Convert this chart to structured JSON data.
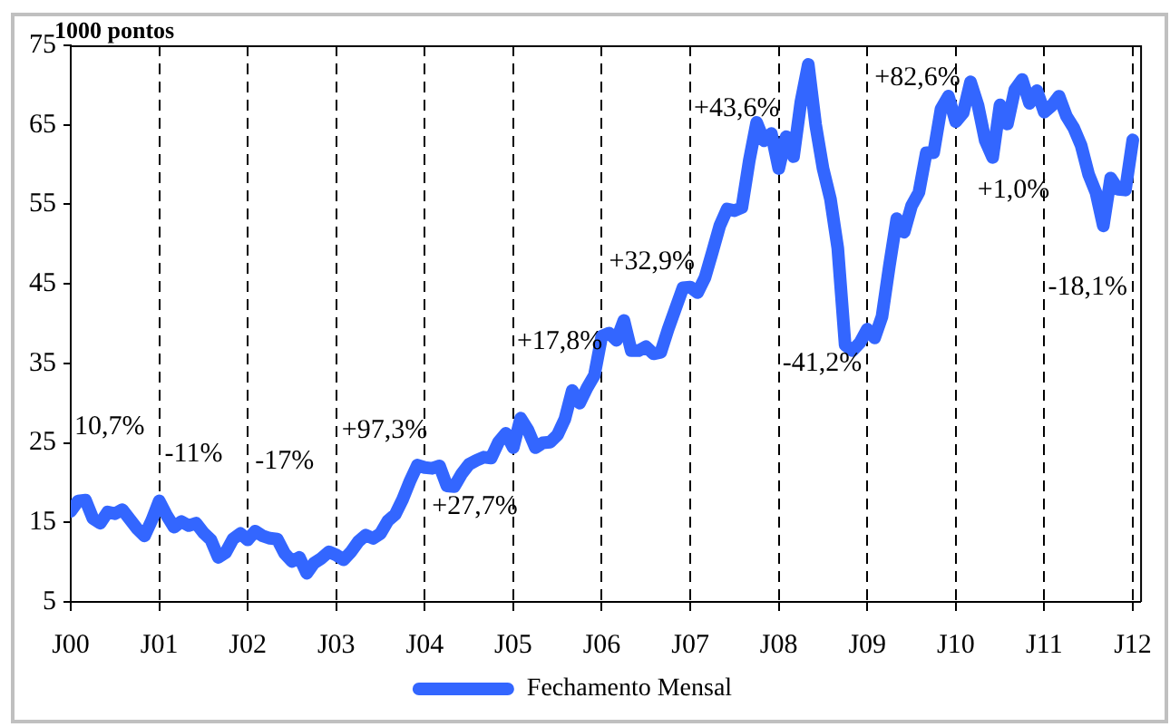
{
  "chart_data": {
    "type": "line",
    "ylabel": "1000 pontos",
    "x": [
      "2000-01",
      "2000-02",
      "2000-03",
      "2000-04",
      "2000-05",
      "2000-06",
      "2000-07",
      "2000-08",
      "2000-09",
      "2000-10",
      "2000-11",
      "2000-12",
      "2001-01",
      "2001-02",
      "2001-03",
      "2001-04",
      "2001-05",
      "2001-06",
      "2001-07",
      "2001-08",
      "2001-09",
      "2001-10",
      "2001-11",
      "2001-12",
      "2002-01",
      "2002-02",
      "2002-03",
      "2002-04",
      "2002-05",
      "2002-06",
      "2002-07",
      "2002-08",
      "2002-09",
      "2002-10",
      "2002-11",
      "2002-12",
      "2003-01",
      "2003-02",
      "2003-03",
      "2003-04",
      "2003-05",
      "2003-06",
      "2003-07",
      "2003-08",
      "2003-09",
      "2003-10",
      "2003-11",
      "2003-12",
      "2004-01",
      "2004-02",
      "2004-03",
      "2004-04",
      "2004-05",
      "2004-06",
      "2004-07",
      "2004-08",
      "2004-09",
      "2004-10",
      "2004-11",
      "2004-12",
      "2005-01",
      "2005-02",
      "2005-03",
      "2005-04",
      "2005-05",
      "2005-06",
      "2005-07",
      "2005-08",
      "2005-09",
      "2005-10",
      "2005-11",
      "2005-12",
      "2006-01",
      "2006-02",
      "2006-03",
      "2006-04",
      "2006-05",
      "2006-06",
      "2006-07",
      "2006-08",
      "2006-09",
      "2006-10",
      "2006-11",
      "2006-12",
      "2007-01",
      "2007-02",
      "2007-03",
      "2007-04",
      "2007-05",
      "2007-06",
      "2007-07",
      "2007-08",
      "2007-09",
      "2007-10",
      "2007-11",
      "2007-12",
      "2008-01",
      "2008-02",
      "2008-03",
      "2008-04",
      "2008-05",
      "2008-06",
      "2008-07",
      "2008-08",
      "2008-09",
      "2008-10",
      "2008-11",
      "2008-12",
      "2009-01",
      "2009-02",
      "2009-03",
      "2009-04",
      "2009-05",
      "2009-06",
      "2009-07",
      "2009-08",
      "2009-09",
      "2009-10",
      "2009-11",
      "2009-12",
      "2010-01",
      "2010-02",
      "2010-03",
      "2010-04",
      "2010-05",
      "2010-06",
      "2010-07",
      "2010-08",
      "2010-09",
      "2010-10",
      "2010-11",
      "2010-12",
      "2011-01",
      "2011-02",
      "2011-03",
      "2011-04",
      "2011-05",
      "2011-06",
      "2011-07",
      "2011-08",
      "2011-09",
      "2011-10",
      "2011-11",
      "2011-12",
      "2012-01"
    ],
    "series": [
      {
        "name": "Fechamento Mensal",
        "color": "#3366ff",
        "values": [
          16.4,
          17.7,
          17.8,
          15.5,
          14.9,
          16.3,
          16.1,
          16.6,
          15.4,
          14.2,
          13.3,
          15.3,
          17.7,
          15.9,
          14.4,
          15.1,
          14.6,
          14.9,
          13.7,
          12.8,
          10.6,
          11.2,
          12.9,
          13.6,
          12.8,
          13.9,
          13.3,
          13.0,
          12.9,
          11.1,
          10.1,
          10.6,
          8.6,
          9.9,
          10.5,
          11.3,
          10.9,
          10.3,
          11.3,
          12.6,
          13.4,
          13.0,
          13.6,
          15.2,
          16.0,
          17.9,
          20.2,
          22.2,
          21.9,
          21.8,
          22.1,
          19.6,
          19.5,
          21.1,
          22.3,
          22.8,
          23.2,
          23.1,
          25.1,
          26.2,
          24.4,
          28.1,
          26.6,
          24.4,
          25.0,
          25.1,
          26.0,
          28.0,
          31.6,
          30.0,
          31.9,
          33.5,
          38.4,
          38.8,
          37.9,
          40.4,
          36.6,
          36.6,
          37.1,
          36.2,
          36.4,
          39.3,
          41.9,
          44.5,
          44.6,
          43.9,
          45.8,
          49.0,
          52.3,
          54.4,
          54.2,
          54.6,
          60.5,
          65.3,
          63.0,
          63.9,
          59.5,
          63.5,
          61.0,
          67.9,
          72.6,
          65.0,
          59.5,
          55.7,
          49.5,
          37.3,
          36.6,
          37.6,
          39.3,
          38.2,
          40.9,
          47.3,
          53.2,
          51.5,
          54.8,
          56.5,
          61.5,
          61.5,
          67.0,
          68.6,
          65.4,
          66.5,
          70.4,
          67.5,
          63.0,
          60.9,
          67.5,
          65.1,
          69.4,
          70.7,
          67.7,
          69.3,
          66.6,
          67.4,
          68.6,
          66.1,
          64.6,
          62.4,
          58.8,
          56.5,
          52.3,
          58.3,
          56.9,
          56.8,
          63.1
        ]
      }
    ],
    "xlim": [
      "2000-01",
      "2012-02"
    ],
    "xticks": [
      {
        "value": "2000-01",
        "label": "J00"
      },
      {
        "value": "2001-01",
        "label": "J01"
      },
      {
        "value": "2002-01",
        "label": "J02"
      },
      {
        "value": "2003-01",
        "label": "J03"
      },
      {
        "value": "2004-01",
        "label": "J04"
      },
      {
        "value": "2005-01",
        "label": "J05"
      },
      {
        "value": "2006-01",
        "label": "J06"
      },
      {
        "value": "2007-01",
        "label": "J07"
      },
      {
        "value": "2008-01",
        "label": "J08"
      },
      {
        "value": "2009-01",
        "label": "J09"
      },
      {
        "value": "2010-01",
        "label": "J10"
      },
      {
        "value": "2011-01",
        "label": "J11"
      },
      {
        "value": "2012-01",
        "label": "J12"
      }
    ],
    "ylim": [
      5,
      75
    ],
    "yticks": [
      5,
      15,
      25,
      35,
      45,
      55,
      65,
      75
    ],
    "grid": "x",
    "legend": "bottom",
    "marker": "none",
    "line_style": "solid",
    "annotations": [
      "10,7%",
      "-11%",
      "-17%",
      "+97,3%",
      "+27,7%",
      "+17,8%",
      "+32,9%",
      "+43,6%",
      "-41,2%",
      "+82,6%",
      "+1,0%",
      "-18,1%"
    ]
  }
}
